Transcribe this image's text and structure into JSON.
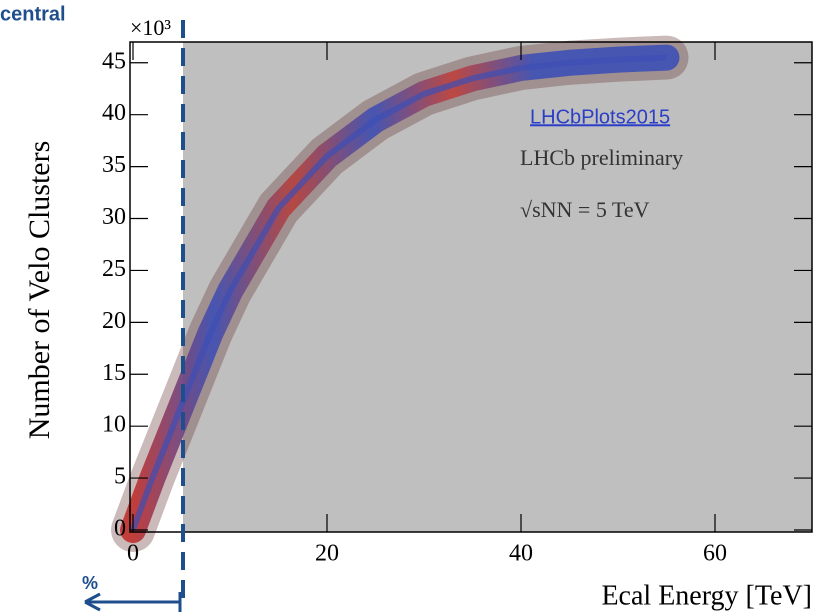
{
  "chart_data": {
    "type": "line",
    "corner_label": "central",
    "exponent_label": "×10³",
    "bottom_label": "%",
    "xlabel": "Ecal Energy [TeV]",
    "ylabel": "Number of Velo Clusters",
    "link": "LHCbPlots2015",
    "annotations": [
      "LHCb preliminary",
      "√sNN = 5 TeV"
    ],
    "x": [
      0,
      2,
      5,
      8,
      10,
      15,
      20,
      25,
      30,
      35,
      40,
      45,
      50,
      55
    ],
    "series": [
      {
        "color": "#3d4fb5",
        "values": [
          0,
          5,
          12,
          19,
          23,
          31,
          36,
          39.5,
          42,
          43.5,
          44.5,
          45,
          45.3,
          45.5
        ]
      }
    ],
    "xlim": [
      0,
      70
    ],
    "ylim": [
      0,
      47
    ],
    "xticks": [
      0,
      20,
      40,
      60
    ],
    "yticks": [
      0,
      5,
      10,
      15,
      20,
      25,
      30,
      35,
      40,
      45
    ]
  }
}
